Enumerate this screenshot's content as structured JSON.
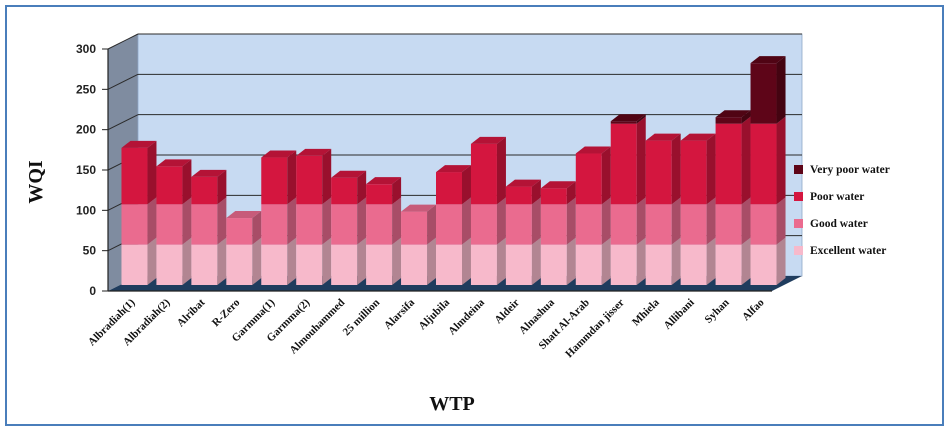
{
  "chart_data": {
    "type": "bar",
    "stacked": true,
    "three_d": true,
    "xlabel": "WTP",
    "ylabel": "WQI",
    "ylim": [
      0,
      300
    ],
    "yticks": [
      0,
      50,
      100,
      150,
      200,
      250,
      300
    ],
    "grid": true,
    "legend_position": "right",
    "categories": [
      "Albradiah(1)",
      "Albradiah(2)",
      "Alribat",
      "R-Zero",
      "Garmma(1)",
      "Garmma(2)",
      "Almouhammed",
      "25 million",
      "Alarsifa",
      "Aljubila",
      "Almdeina",
      "Aldeir",
      "Alnashua",
      "Shatt Al-Arab",
      "Hammdan jisser",
      "Mhiela",
      "Allibani",
      "Syhan",
      "Alfao"
    ],
    "totals": [
      170,
      147,
      134,
      83,
      158,
      160,
      133,
      125,
      91,
      140,
      175,
      122,
      120,
      163,
      203,
      179,
      179,
      208,
      275
    ],
    "series": [
      {
        "name": "Excellent water",
        "color": "#f7b9cb",
        "values": [
          50,
          50,
          50,
          50,
          50,
          50,
          50,
          50,
          50,
          50,
          50,
          50,
          50,
          50,
          50,
          50,
          50,
          50,
          50
        ]
      },
      {
        "name": "Good water",
        "color": "#ea6b8f",
        "values": [
          50,
          50,
          50,
          33,
          50,
          50,
          50,
          50,
          41,
          50,
          50,
          50,
          50,
          50,
          50,
          50,
          50,
          50,
          50
        ]
      },
      {
        "name": "Poor water",
        "color": "#d4163f",
        "values": [
          70,
          47,
          34,
          0,
          58,
          60,
          33,
          25,
          0,
          40,
          75,
          22,
          20,
          63,
          100,
          79,
          79,
          100,
          100
        ]
      },
      {
        "name": "Very poor water",
        "color": "#5e0518",
        "values": [
          0,
          0,
          0,
          0,
          0,
          0,
          0,
          0,
          0,
          0,
          0,
          0,
          0,
          0,
          3,
          0,
          0,
          8,
          75
        ]
      }
    ]
  }
}
